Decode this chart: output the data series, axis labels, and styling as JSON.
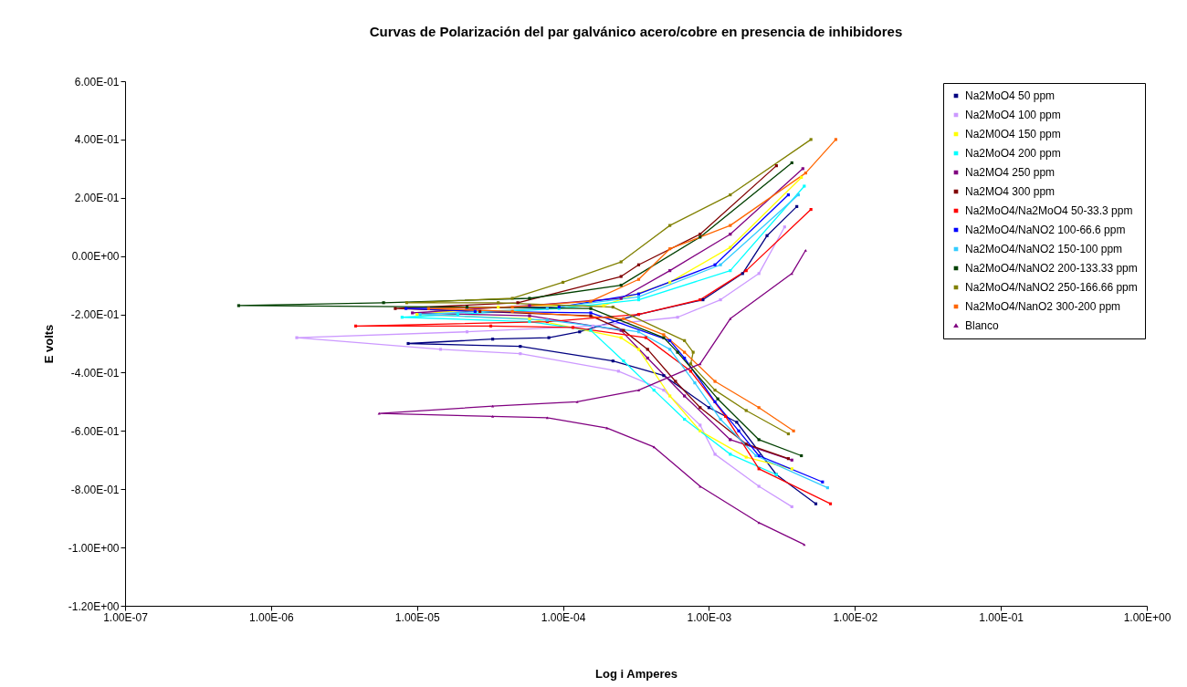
{
  "chart_data": {
    "type": "line",
    "title": "Curvas de Polarización del par galvánico acero/cobre en presencia de inhibidores",
    "xlabel": "Log i Amperes",
    "ylabel": "E volts",
    "log": "x",
    "grid": false,
    "legend": "top right",
    "line_style": "solid",
    "xlim": [
      1e-07,
      1
    ],
    "xticks": [
      {
        "value": 1e-07,
        "label": "1.00E-07"
      },
      {
        "value": 1e-06,
        "label": "1.00E-06"
      },
      {
        "value": 1e-05,
        "label": "1.00E-05"
      },
      {
        "value": 0.0001,
        "label": "1.00E-04"
      },
      {
        "value": 0.001,
        "label": "1.00E-03"
      },
      {
        "value": 0.01,
        "label": "1.00E-02"
      },
      {
        "value": 0.1,
        "label": "1.00E-01"
      },
      {
        "value": 1,
        "label": "1.00E+00"
      }
    ],
    "ylim": [
      -1.2,
      0.6
    ],
    "yticks": [
      {
        "value": -1.2,
        "label": "-1.20E+00"
      },
      {
        "value": -1.0,
        "label": "-1.00E+00"
      },
      {
        "value": -0.8,
        "label": "-8.00E-01"
      },
      {
        "value": -0.6,
        "label": "-6.00E-01"
      },
      {
        "value": -0.4,
        "label": "-4.00E-01"
      },
      {
        "value": -0.2,
        "label": "-2.00E-01"
      },
      {
        "value": 0,
        "label": "0.00E+00"
      },
      {
        "value": 0.2,
        "label": "2.00E-01"
      },
      {
        "value": 0.4,
        "label": "4.00E-01"
      },
      {
        "value": 0.6,
        "label": "6.00E-01"
      }
    ],
    "series": [
      {
        "name": "Na2MoO4 50 ppm",
        "color": "#000080",
        "marker": "square",
        "x": [
          0.004,
          0.0025,
          0.0017,
          0.00091,
          0.00033,
          0.00013,
          8e-05,
          3.3e-05,
          8.7e-06,
          5.1e-05,
          0.00022,
          0.00049,
          0.001,
          0.00155,
          0.0029,
          0.0054
        ],
        "values": [
          0.17,
          0.07,
          -0.06,
          -0.15,
          -0.2,
          -0.26,
          -0.28,
          -0.285,
          -0.3,
          -0.31,
          -0.36,
          -0.41,
          -0.52,
          -0.57,
          -0.75,
          -0.85
        ]
      },
      {
        "name": "Na2MoO4 100 ppm",
        "color": "#cc99ff",
        "marker": "square",
        "x": [
          0.0033,
          0.0022,
          0.0012,
          0.00061,
          0.00016,
          2.2e-05,
          1.5e-06,
          1.45e-05,
          5.1e-05,
          0.00024,
          0.00049,
          0.00087,
          0.0011,
          0.0022,
          0.0037
        ],
        "values": [
          0.1,
          -0.06,
          -0.15,
          -0.21,
          -0.24,
          -0.26,
          -0.28,
          -0.32,
          -0.335,
          -0.395,
          -0.46,
          -0.58,
          -0.68,
          -0.79,
          -0.86
        ]
      },
      {
        "name": "Na2M0O4 150 ppm",
        "color": "#ffff00",
        "marker": "square",
        "x": [
          0.0043,
          0.0014,
          0.00054,
          0.00019,
          3.6e-05,
          1e-05,
          5.9e-05,
          0.00025,
          0.00033,
          0.00054,
          0.00087,
          0.0018,
          0.0037
        ],
        "values": [
          0.27,
          0.03,
          -0.09,
          -0.17,
          -0.175,
          -0.2,
          -0.215,
          -0.28,
          -0.32,
          -0.48,
          -0.6,
          -0.69,
          -0.73
        ]
      },
      {
        "name": "Na2MoO4 200 ppm",
        "color": "#00ffff",
        "marker": "square",
        "x": [
          0.0045,
          0.0014,
          0.00033,
          9.4e-05,
          1.9e-05,
          7.9e-06,
          5.9e-05,
          0.000155,
          0.00026,
          0.00042,
          0.00068,
          0.0014,
          0.0029
        ],
        "values": [
          0.24,
          -0.05,
          -0.15,
          -0.18,
          -0.2,
          -0.21,
          -0.225,
          -0.255,
          -0.36,
          -0.46,
          -0.56,
          -0.68,
          -0.75
        ]
      },
      {
        "name": "Na2MO4 250 ppm",
        "color": "#800080",
        "marker": "square",
        "x": [
          0.0044,
          0.0014,
          0.00054,
          0.00025,
          5.9e-05,
          9.3e-06,
          5.9e-05,
          0.00025,
          0.00038,
          0.00068,
          0.0014,
          0.0037
        ],
        "values": [
          0.3,
          0.075,
          -0.05,
          -0.145,
          -0.17,
          -0.195,
          -0.205,
          -0.255,
          -0.35,
          -0.48,
          -0.63,
          -0.7
        ]
      },
      {
        "name": "Na2MO4 300 ppm",
        "color": "#800000",
        "marker": "square",
        "x": [
          0.0029,
          0.00087,
          0.00033,
          0.00025,
          4.9e-05,
          7.1e-06,
          2.7e-05,
          0.000155,
          0.00026,
          0.00038,
          0.00059,
          0.00087,
          0.0018,
          0.0035
        ],
        "values": [
          0.31,
          0.075,
          -0.03,
          -0.07,
          -0.16,
          -0.18,
          -0.19,
          -0.205,
          -0.255,
          -0.32,
          -0.43,
          -0.52,
          -0.645,
          -0.695
        ]
      },
      {
        "name": "Na2MoO4/Na2MoO4 50-33.3 ppm",
        "color": "#ff0000",
        "marker": "square",
        "x": [
          0.005,
          0.0018,
          0.00087,
          0.00033,
          7.8e-05,
          3.8e-06,
          3.2e-05,
          0.000117,
          0.00037,
          0.00075,
          0.0013,
          0.0022,
          0.0068
        ],
        "values": [
          0.16,
          -0.05,
          -0.15,
          -0.2,
          -0.225,
          -0.24,
          -0.24,
          -0.245,
          -0.28,
          -0.395,
          -0.55,
          -0.73,
          -0.85
        ]
      },
      {
        "name": "Na2MoO4/NaNO2 100-66.6 ppm",
        "color": "#0000ff",
        "marker": "square",
        "x": [
          0.0035,
          0.0011,
          0.00033,
          9.4e-05,
          8.4e-06,
          2.5e-05,
          0.000155,
          0.00054,
          0.00068,
          0.0011,
          0.0016,
          0.0022,
          0.006
        ],
        "values": [
          0.21,
          -0.03,
          -0.13,
          -0.175,
          -0.18,
          -0.19,
          -0.195,
          -0.29,
          -0.35,
          -0.5,
          -0.6,
          -0.685,
          -0.775
        ]
      },
      {
        "name": "Na2MoO4/NaNO2 150-100 ppm",
        "color": "#33ccff",
        "marker": "square",
        "x": [
          0.0041,
          0.0012,
          0.00033,
          7.8e-05,
          1.05e-05,
          7.8e-05,
          0.00033,
          0.00054,
          0.0008,
          0.0012,
          0.0021,
          0.0065
        ],
        "values": [
          0.21,
          -0.03,
          -0.14,
          -0.18,
          -0.2,
          -0.22,
          -0.26,
          -0.32,
          -0.435,
          -0.56,
          -0.685,
          -0.795
        ]
      },
      {
        "name": "Na2MoO4/NaNO2 200-133.33 ppm",
        "color": "#004000",
        "marker": "square",
        "x": [
          0.0037,
          0.00087,
          0.00025,
          5.9e-05,
          5.9e-06,
          6e-07,
          2.2e-05,
          0.000155,
          0.00049,
          0.00061,
          0.00115,
          0.0022,
          0.0043
        ],
        "values": [
          0.32,
          0.065,
          -0.1,
          -0.145,
          -0.16,
          -0.17,
          -0.175,
          -0.18,
          -0.28,
          -0.33,
          -0.49,
          -0.63,
          -0.685
        ]
      },
      {
        "name": "Na2MoO4/NaNO2 250-166.66 ppm",
        "color": "#808000",
        "marker": "square",
        "x": [
          0.005,
          0.0014,
          0.00054,
          0.00025,
          0.0001,
          4.5e-05,
          8.5e-06,
          3.6e-05,
          0.00022,
          0.00068,
          0.00078,
          0.00075,
          0.0011,
          0.0018,
          0.0035
        ],
        "values": [
          0.4,
          0.21,
          0.105,
          -0.02,
          -0.09,
          -0.145,
          -0.16,
          -0.16,
          -0.175,
          -0.29,
          -0.33,
          -0.37,
          -0.46,
          -0.53,
          -0.61
        ]
      },
      {
        "name": "Na2MoO4/NanO2 300-200 ppm",
        "color": "#ff6600",
        "marker": "square",
        "x": [
          0.0074,
          0.0046,
          0.0014,
          0.00054,
          0.00033,
          0.000155,
          4.5e-05,
          1.2e-05,
          4.5e-05,
          0.00026,
          0.00049,
          0.00068,
          0.0011,
          0.0022,
          0.0038
        ],
        "values": [
          0.4,
          0.285,
          0.105,
          0.025,
          -0.08,
          -0.155,
          -0.175,
          -0.18,
          -0.19,
          -0.215,
          -0.27,
          -0.33,
          -0.43,
          -0.52,
          -0.6
        ]
      },
      {
        "name": "Blanco",
        "color": "#800080",
        "marker": "triangle",
        "x": [
          0.0046,
          0.0037,
          0.0014,
          0.00087,
          0.00033,
          0.000125,
          3.3e-05,
          5.5e-06,
          3.3e-05,
          7.8e-05,
          0.0002,
          0.00042,
          0.00087,
          0.0022,
          0.0045
        ],
        "values": [
          0.02,
          -0.06,
          -0.215,
          -0.37,
          -0.46,
          -0.5,
          -0.515,
          -0.54,
          -0.55,
          -0.555,
          -0.59,
          -0.655,
          -0.79,
          -0.915,
          -0.99
        ]
      }
    ]
  }
}
